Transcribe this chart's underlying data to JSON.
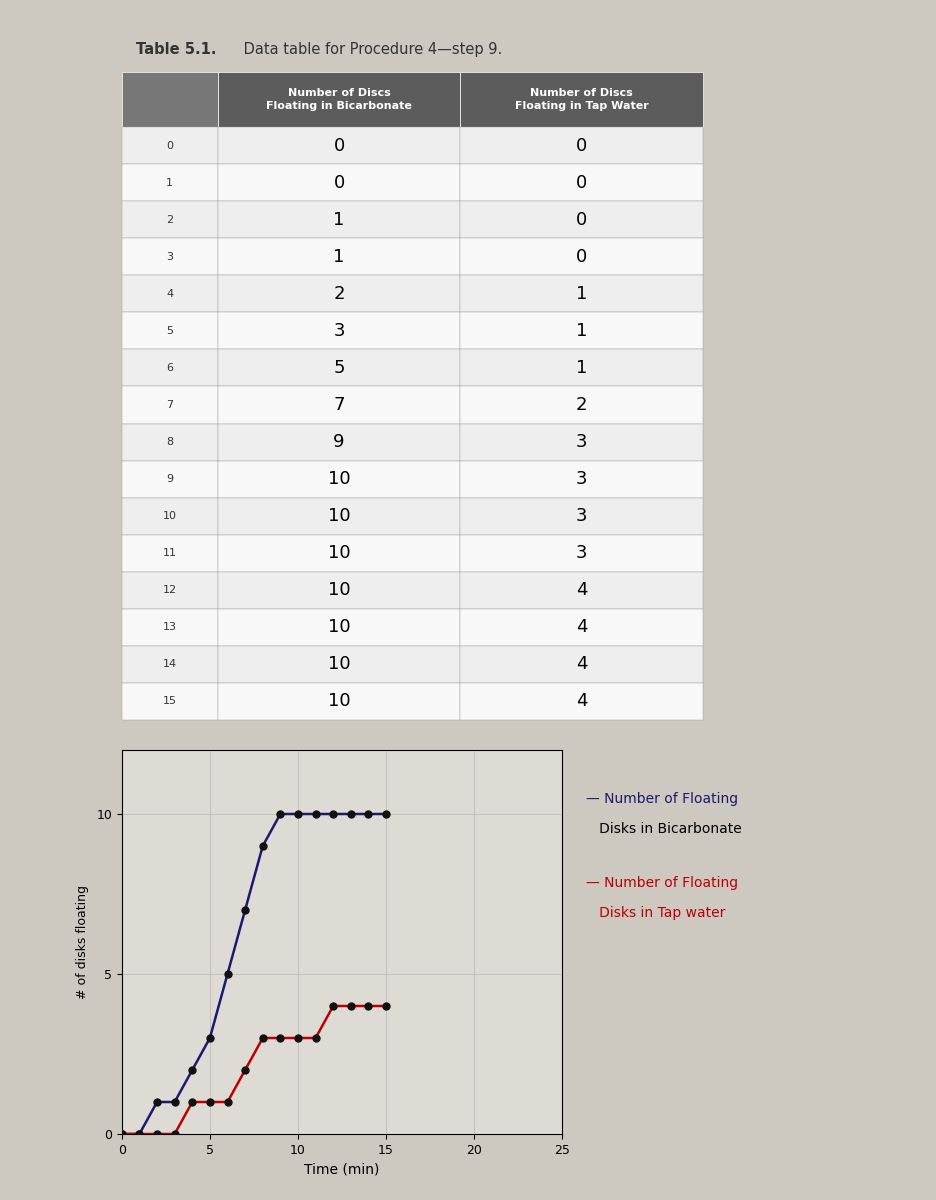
{
  "title_bold": "Table 5.1.",
  "title_normal": " Data table for Procedure 4—step 9.",
  "col_headers": [
    "",
    "Number of Discs\nFloating in Bicarbonate",
    "Number of Discs\nFloating in Tap Water"
  ],
  "time": [
    0,
    1,
    2,
    3,
    4,
    5,
    6,
    7,
    8,
    9,
    10,
    11,
    12,
    13,
    14,
    15
  ],
  "bicarb": [
    0,
    0,
    1,
    1,
    2,
    3,
    5,
    7,
    9,
    10,
    10,
    10,
    10,
    10,
    10,
    10
  ],
  "tap": [
    0,
    0,
    0,
    0,
    1,
    1,
    1,
    2,
    3,
    3,
    3,
    3,
    4,
    4,
    4,
    4
  ],
  "header_bg": "#5c5c5c",
  "header_fg": "#ffffff",
  "row_bg_light": "#eeeeee",
  "row_bg_white": "#f8f8f8",
  "table_border": "#999999",
  "bicarb_color": "#1a1a6e",
  "tap_color": "#bb0000",
  "grid_color": "#bbbbbb",
  "bg_color": "#cdc8c0",
  "plot_bg": "#dedad4",
  "ylabel": "# of disks floating",
  "xlabel": "Time (min)",
  "legend_bicarb_line1": "— Number of Floating",
  "legend_bicarb_line2": "   Disks in Bicarbonate",
  "legend_tap_line1": "— Number of Floating",
  "legend_tap_line2": "   Disks in Tap water",
  "y_ticks": [
    0,
    5,
    10
  ],
  "x_ticks": [
    0,
    5,
    10,
    15,
    20,
    25
  ],
  "xlim": [
    0,
    25
  ],
  "ylim": [
    0,
    12
  ]
}
